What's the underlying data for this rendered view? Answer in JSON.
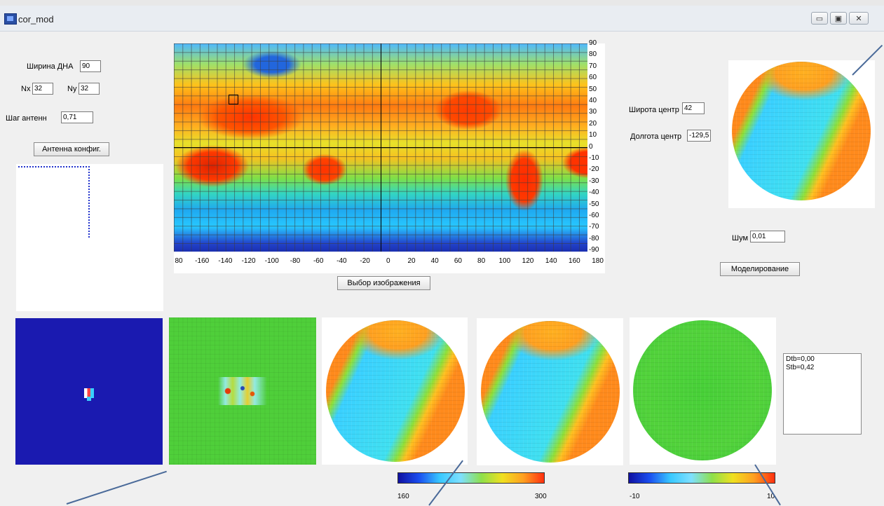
{
  "window": {
    "title": "cor_mod",
    "controls": {
      "minimize": "▭",
      "maximize": "▣",
      "close": "✕"
    }
  },
  "antenna": {
    "beam_width_label": "Ширина ДНА",
    "beam_width_value": "90",
    "nx_label": "Nx",
    "nx_value": "32",
    "ny_label": "Ny",
    "ny_value": "32",
    "step_label": "Шаг антенн",
    "step_value": "0,71",
    "config_button": "Антенна конфиг."
  },
  "map": {
    "select_button": "Выбор изображения",
    "y_ticks": [
      "90",
      "80",
      "70",
      "60",
      "50",
      "40",
      "30",
      "20",
      "10",
      "0",
      "-10",
      "-20",
      "-30",
      "-40",
      "-50",
      "-60",
      "-70",
      "-80",
      "-90"
    ],
    "x_ticks": [
      "80",
      "-160",
      "-140",
      "-120",
      "-100",
      "-80",
      "-60",
      "-40",
      "-20",
      "0",
      "20",
      "40",
      "60",
      "80",
      "100",
      "120",
      "140",
      "160",
      "180"
    ]
  },
  "center": {
    "lat_label": "Широта центр",
    "lat_value": "42",
    "lon_label": "Долгота центр",
    "lon_value": "-129,5"
  },
  "noise": {
    "label": "Шум",
    "value": "0,01"
  },
  "model_button": "Моделирование",
  "stats": {
    "line1": "Dtb=0,00",
    "line2": "Stb=0,42"
  },
  "colorbars": [
    {
      "min": "160",
      "max": "300"
    },
    {
      "min": "-10",
      "max": "10"
    }
  ],
  "colors": {
    "bg": "#f0f0f0",
    "deep_blue": "#1a1ab0"
  }
}
